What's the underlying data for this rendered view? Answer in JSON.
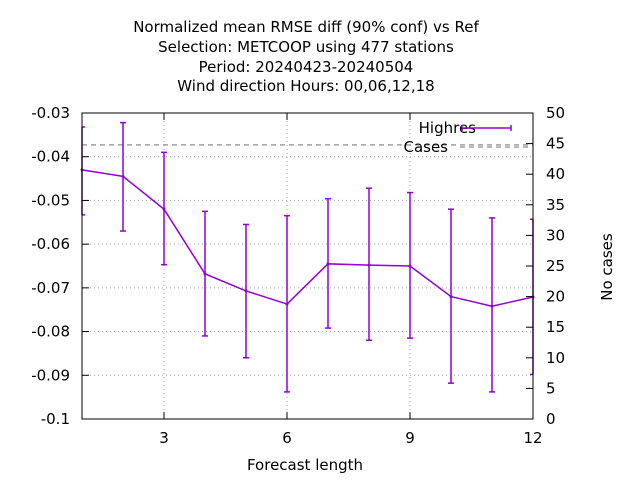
{
  "chart_data": {
    "type": "line",
    "title_lines": [
      "Normalized mean RMSE diff (90% conf) vs Ref",
      "Selection: METCOOP using   477 stations",
      "Period: 20240423-20240504",
      "Wind direction   Hours:  00,06,12,18"
    ],
    "xlabel": "Forecast length",
    "ylabel_right": "No cases",
    "xlim": [
      1,
      12
    ],
    "ylim": [
      -0.1,
      -0.03
    ],
    "y2lim": [
      0,
      50
    ],
    "x_ticks": [
      3,
      6,
      9,
      12
    ],
    "x_tick_labels": [
      "3",
      "6",
      "9",
      "12"
    ],
    "y_ticks": [
      -0.03,
      -0.04,
      -0.05,
      -0.06,
      -0.07,
      -0.08,
      -0.09,
      -0.1
    ],
    "y_tick_labels": [
      "-0.03",
      "-0.04",
      "-0.05",
      "-0.06",
      "-0.07",
      "-0.08",
      "-0.09",
      "-0.1"
    ],
    "y2_ticks": [
      0,
      5,
      10,
      15,
      20,
      25,
      30,
      35,
      40,
      45,
      50
    ],
    "y2_tick_labels": [
      "0",
      "5",
      "10",
      "15",
      "20",
      "25",
      "30",
      "35",
      "40",
      "45",
      "50"
    ],
    "grid": true,
    "legend_position": "top-right",
    "series": [
      {
        "name": "Highres",
        "color": "#9400d3",
        "x": [
          1,
          2,
          3,
          4,
          5,
          6,
          7,
          8,
          9,
          10,
          11,
          12
        ],
        "y": [
          -0.043,
          -0.0445,
          -0.052,
          -0.0668,
          -0.0707,
          -0.0737,
          -0.0645,
          -0.0648,
          -0.065,
          -0.072,
          -0.0742,
          -0.0721
        ],
        "y_low": [
          -0.0533,
          -0.057,
          -0.0647,
          -0.081,
          -0.086,
          -0.0938,
          -0.0792,
          -0.082,
          -0.0815,
          -0.0918,
          -0.0938,
          -0.0898
        ],
        "y_high": [
          -0.0332,
          -0.0322,
          -0.039,
          -0.0525,
          -0.0555,
          -0.0535,
          -0.0496,
          -0.0472,
          -0.0482,
          -0.052,
          -0.054,
          -0.0543
        ]
      },
      {
        "name": "Cases",
        "color": "#a0a0a0",
        "axis": "right",
        "x": [
          1,
          2,
          3,
          4,
          5,
          6,
          7,
          8,
          9,
          10,
          11,
          12
        ],
        "y": [
          44.8,
          44.8,
          44.8,
          44.8,
          44.8,
          44.8,
          44.8,
          44.8,
          44.8,
          44.8,
          44.8,
          44.8
        ]
      }
    ]
  }
}
